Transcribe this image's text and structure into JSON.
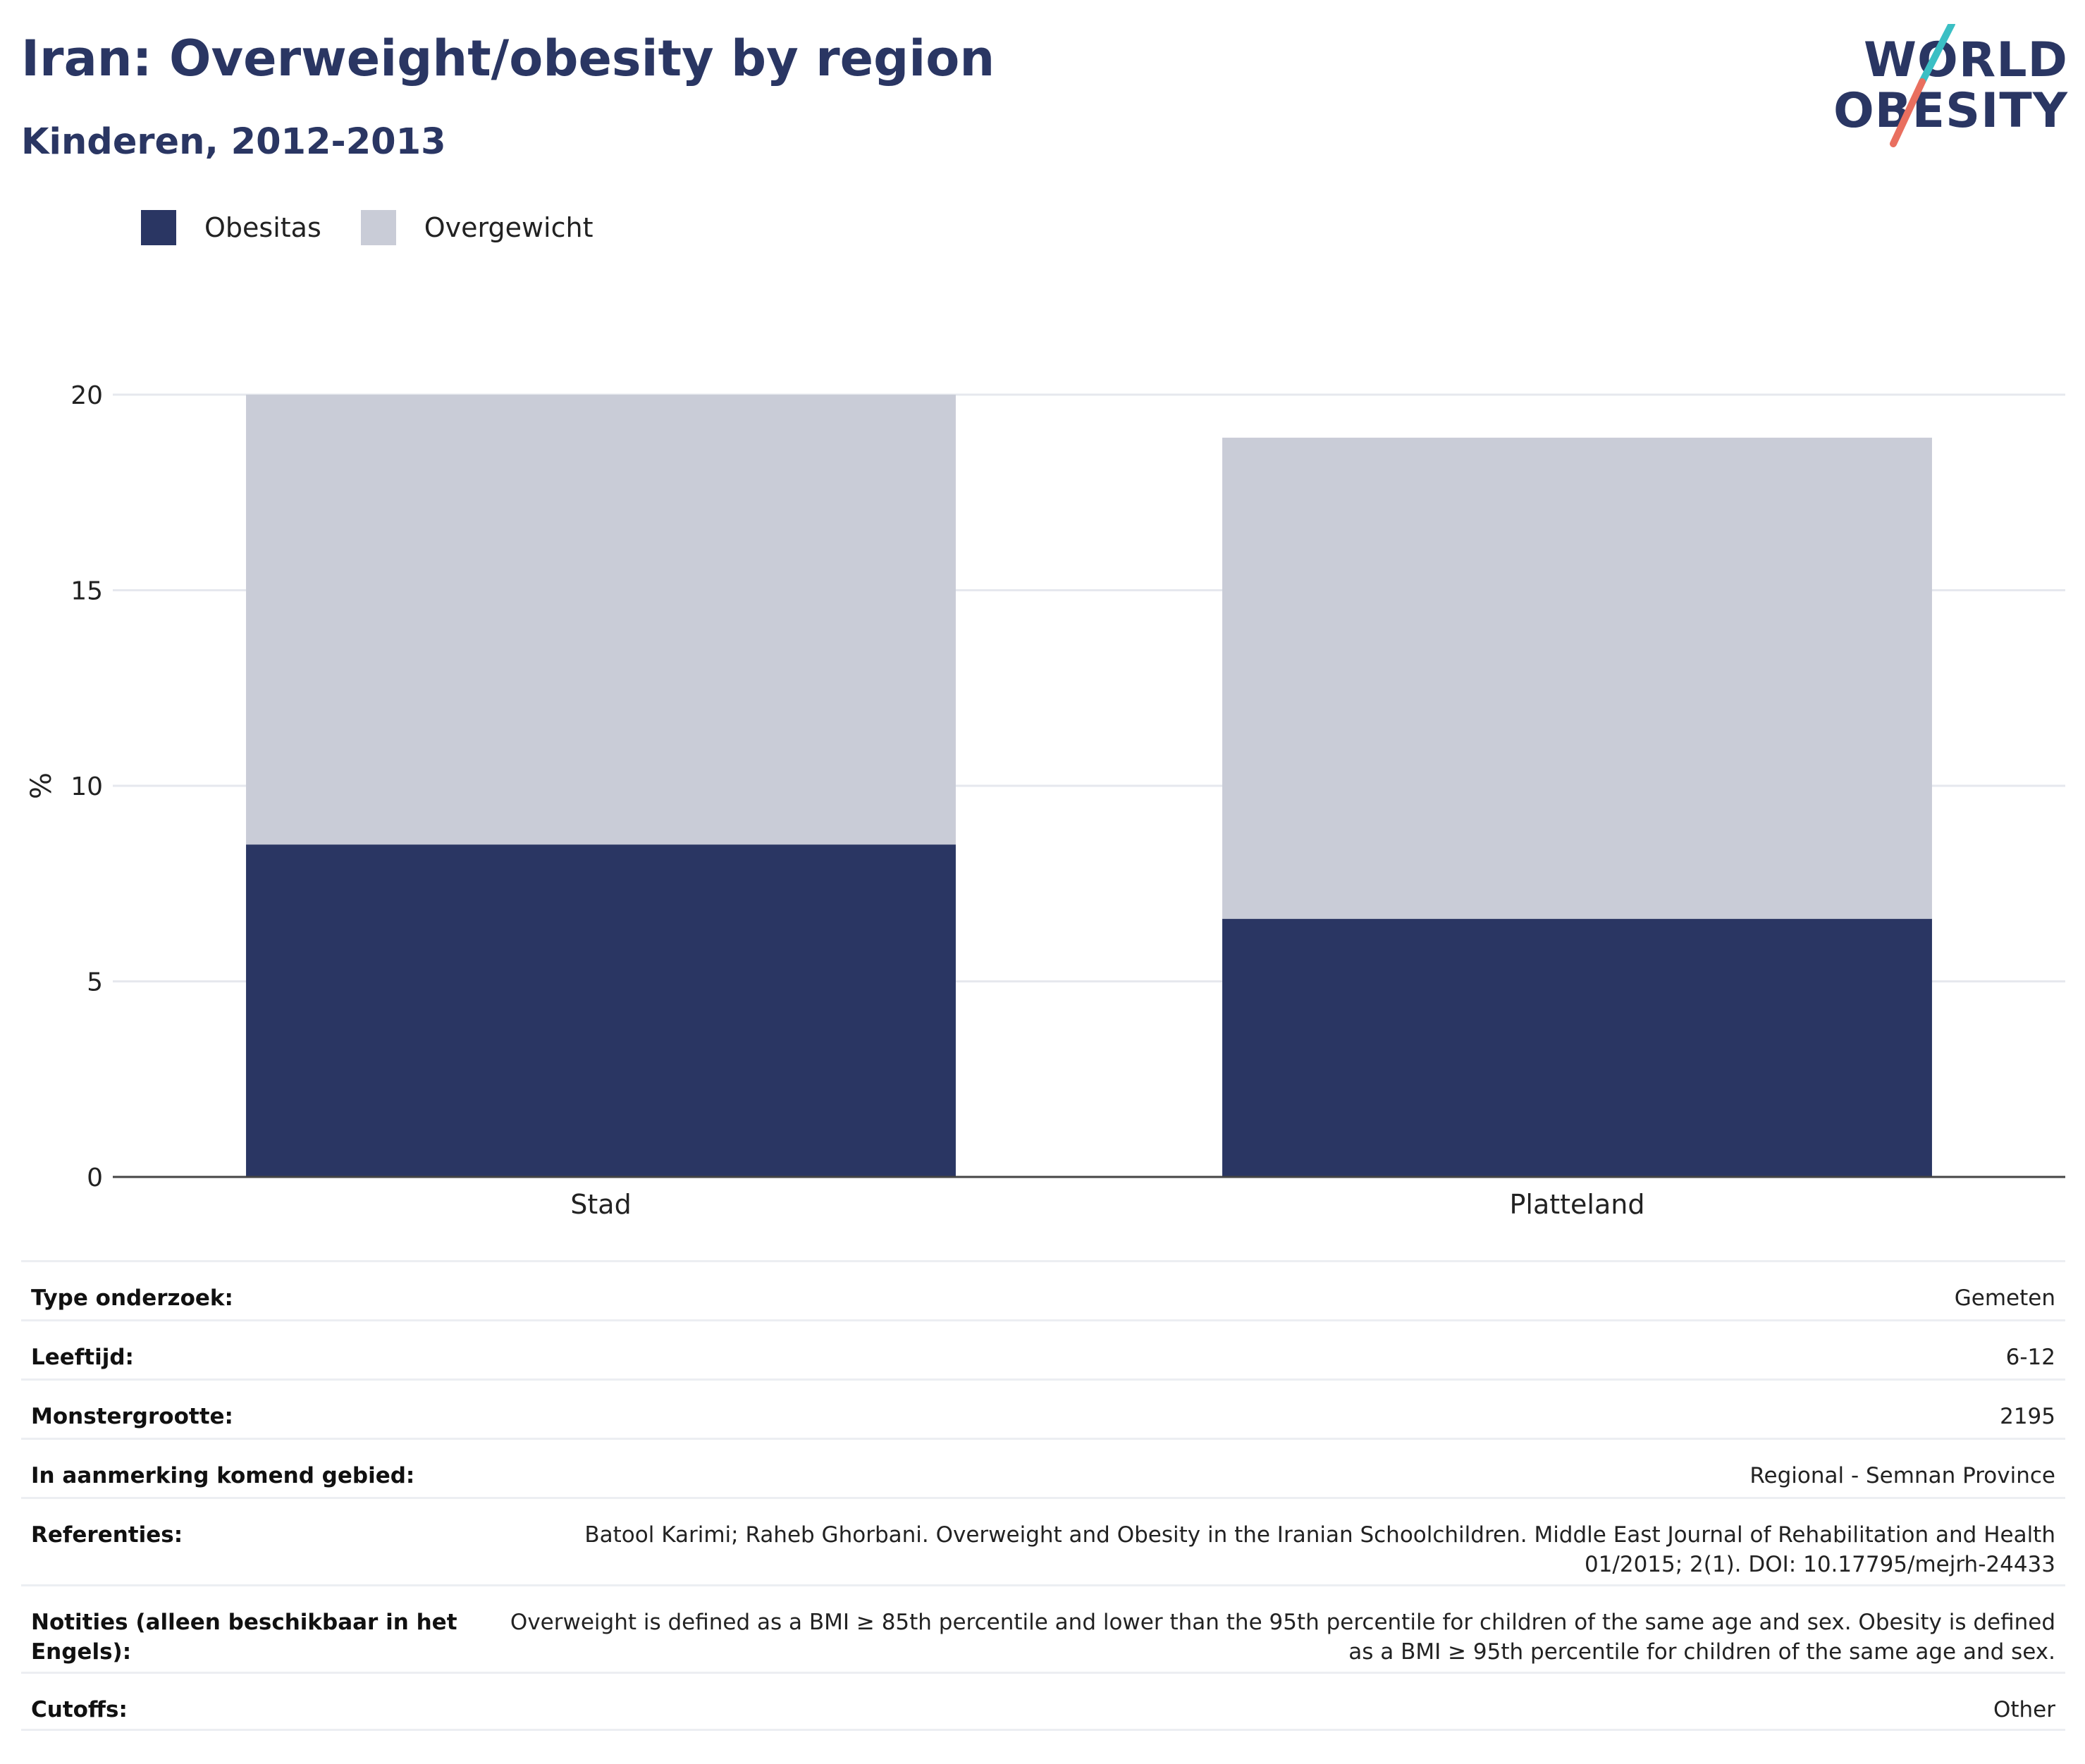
{
  "header": {
    "title": "Iran: Overweight/obesity by region",
    "subtitle": "Kinderen, 2012-2013"
  },
  "logo": {
    "line1": "WORLD",
    "line2": "OBESITY",
    "accent_teal": "#3bbfc4",
    "accent_coral": "#e96f5f"
  },
  "legend": {
    "items": [
      {
        "label": "Obesitas",
        "color": "#2a3663"
      },
      {
        "label": "Overgewicht",
        "color": "#c9ccd7"
      }
    ]
  },
  "chart_data": {
    "type": "bar",
    "stacked": true,
    "categories": [
      "Stad",
      "Platteland"
    ],
    "series": [
      {
        "name": "Obesitas",
        "values": [
          8.5,
          6.6
        ],
        "color": "#2a3663"
      },
      {
        "name": "Overgewicht",
        "values": [
          11.5,
          12.3
        ],
        "color": "#c9ccd7"
      }
    ],
    "ylabel": "%",
    "ylim": [
      0,
      20
    ],
    "yticks": [
      0,
      5,
      10,
      15,
      20
    ],
    "grid": true,
    "legend_position": "top-left"
  },
  "details": {
    "rows": [
      {
        "label": "Type onderzoek:",
        "value": "Gemeten"
      },
      {
        "label": "Leeftijd:",
        "value": "6-12"
      },
      {
        "label": "Monstergrootte:",
        "value": "2195"
      },
      {
        "label": "In aanmerking komend gebied:",
        "value": "Regional - Semnan Province"
      },
      {
        "label": "Referenties:",
        "value": "Batool Karimi; Raheb Ghorbani. Overweight and Obesity in the Iranian Schoolchildren. Middle East Journal of Rehabilitation and Health 01/2015; 2(1). DOI: 10.17795/mejrh-24433"
      },
      {
        "label": "Notities (alleen beschikbaar in het Engels):",
        "value": "Overweight is defined as a BMI ≥ 85th percentile and lower than the 95th percentile for children of the same age and sex. Obesity is defined as a BMI ≥ 95th percentile for children of the same age and sex."
      },
      {
        "label": "Cutoffs:",
        "value": "Other"
      }
    ]
  }
}
